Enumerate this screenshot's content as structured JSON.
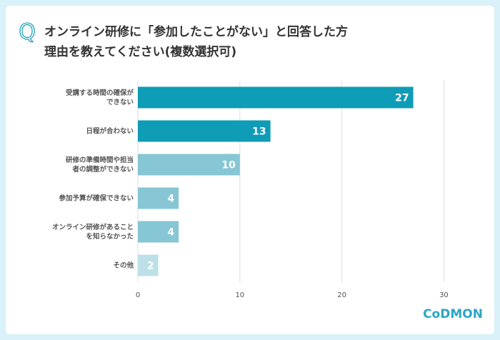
{
  "chart_data": {
    "type": "hbar",
    "question_mark": "Q",
    "title": [
      "オンライン研修に「参加したことがない」と回答した方",
      "理由を教えてください(複数選択可)"
    ],
    "categories": [
      "受講する時間の確保が\nできない",
      "日程が合わない",
      "研修の準備時間や担当\n者の調整ができない",
      "参加予算が確保できない",
      "オンライン研修があること\nを知らなかった",
      "その他"
    ],
    "values": [
      27,
      13,
      10,
      4,
      4,
      2
    ],
    "colors": [
      "#0f9cb6",
      "#0f9cb6",
      "#86c6d5",
      "#86c6d5",
      "#86c6d5",
      "#bde0e8"
    ],
    "xlim": [
      0,
      32
    ],
    "xticks": [
      0,
      10,
      20,
      30
    ],
    "grid": true,
    "logo": "CoDMON"
  }
}
